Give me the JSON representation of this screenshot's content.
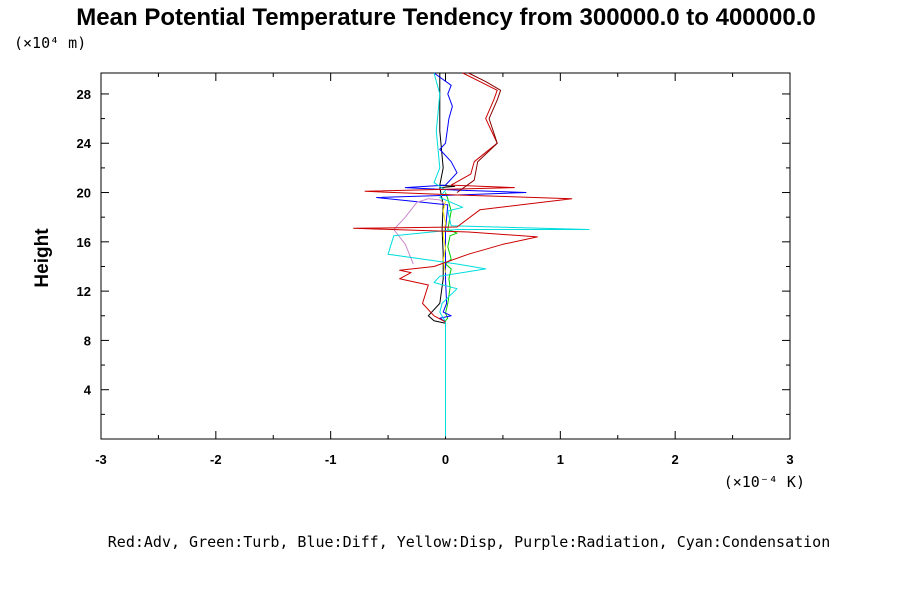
{
  "chart_data": {
    "type": "line",
    "title": "Mean Potential Temperature Tendency from 300000.0 to 400000.0",
    "ylabel": "Height",
    "y_unit": "(×10⁴ m)",
    "x_unit": "(×10⁻⁴ K)",
    "xlim": [
      -3,
      3
    ],
    "ylim": [
      0,
      29.7
    ],
    "x_ticks": [
      {
        "value": -3,
        "label": "-3"
      },
      {
        "value": -2,
        "label": "-2"
      },
      {
        "value": -1,
        "label": "-1"
      },
      {
        "value": 0,
        "label": "0"
      },
      {
        "value": 1,
        "label": "1"
      },
      {
        "value": 2,
        "label": "2"
      },
      {
        "value": 3,
        "label": "3"
      }
    ],
    "y_ticks": [
      {
        "value": 4,
        "label": "4"
      },
      {
        "value": 8,
        "label": "8"
      },
      {
        "value": 12,
        "label": "12"
      },
      {
        "value": 16,
        "label": "16"
      },
      {
        "value": 20,
        "label": "20"
      },
      {
        "value": 24,
        "label": "24"
      },
      {
        "value": 28,
        "label": "28"
      }
    ],
    "grid": false,
    "legend_text": "Red:Adv, Green:Turb, Blue:Diff, Yellow:Disp, Purple:Radiation, Cyan:Condensation",
    "series": [
      {
        "color": "#000000",
        "points": [
          [
            0,
            0.2
          ],
          [
            0,
            9.4
          ],
          [
            -0.1,
            9.6
          ],
          [
            -0.15,
            10
          ],
          [
            -0.05,
            11
          ],
          [
            -0.02,
            13
          ],
          [
            -0.02,
            15
          ],
          [
            -0.03,
            17
          ],
          [
            -0.02,
            19
          ],
          [
            -0.05,
            20.4
          ],
          [
            0.08,
            20.5
          ],
          [
            -0.05,
            20.6
          ],
          [
            -0.02,
            22
          ],
          [
            -0.05,
            25
          ],
          [
            -0.05,
            29.7
          ]
        ]
      },
      {
        "color": "#00cc00",
        "points": [
          [
            0,
            0.2
          ],
          [
            0,
            9.6
          ],
          [
            0.02,
            9.8
          ],
          [
            0,
            10.2
          ],
          [
            0.02,
            11
          ],
          [
            0.04,
            12.3
          ],
          [
            0.03,
            13
          ],
          [
            0.05,
            13.8
          ],
          [
            0,
            14.2
          ],
          [
            0.05,
            14.6
          ],
          [
            0.02,
            15.6
          ],
          [
            0.04,
            16.5
          ],
          [
            0.1,
            16.7
          ],
          [
            0.02,
            17
          ],
          [
            0.05,
            18.5
          ],
          [
            0.02,
            19.5
          ],
          [
            0,
            20
          ]
        ]
      },
      {
        "color": "#0000ff",
        "points": [
          [
            0,
            9.5
          ],
          [
            -0.05,
            9.8
          ],
          [
            0.05,
            10
          ],
          [
            -0.02,
            10.3
          ],
          [
            0.01,
            11
          ],
          [
            0,
            13
          ],
          [
            0,
            17
          ],
          [
            0.02,
            19
          ],
          [
            -0.6,
            19.6
          ],
          [
            0.1,
            19.8
          ],
          [
            0.7,
            20
          ],
          [
            0.1,
            20.2
          ],
          [
            -0.35,
            20.4
          ],
          [
            0,
            20.6
          ],
          [
            0.1,
            21.6
          ],
          [
            0.05,
            22.5
          ],
          [
            -0.05,
            23.5
          ],
          [
            0,
            24
          ],
          [
            0.03,
            26
          ],
          [
            0.06,
            27
          ],
          [
            0.02,
            28
          ],
          [
            0.05,
            28.7
          ],
          [
            -0.1,
            29.7
          ]
        ]
      },
      {
        "color": "#ffee00",
        "points": [
          [
            0,
            13.5
          ],
          [
            -0.02,
            14.5
          ],
          [
            0,
            15.5
          ],
          [
            -0.02,
            16.5
          ],
          [
            0,
            17.5
          ],
          [
            -0.02,
            18.5
          ],
          [
            0,
            19.3
          ]
        ]
      },
      {
        "color": "#cc88cc",
        "points": [
          [
            -0.28,
            14.2
          ],
          [
            -0.35,
            15.8
          ],
          [
            -0.45,
            17
          ],
          [
            -0.35,
            18
          ],
          [
            -0.25,
            19.2
          ],
          [
            -0.15,
            19.5
          ],
          [
            -0.05,
            19.4
          ],
          [
            0,
            19
          ]
        ]
      },
      {
        "color": "#00dddd",
        "points": [
          [
            0,
            0.2
          ],
          [
            0,
            9.5
          ],
          [
            -0.05,
            10.3
          ],
          [
            -0.03,
            11
          ],
          [
            0.1,
            12.2
          ],
          [
            -0.1,
            12.7
          ],
          [
            -0.05,
            13.2
          ],
          [
            0.35,
            13.8
          ],
          [
            0.1,
            14.2
          ],
          [
            -0.5,
            15
          ],
          [
            -0.45,
            16.5
          ],
          [
            0.1,
            17
          ],
          [
            1.25,
            17
          ],
          [
            0.05,
            17.3
          ],
          [
            0.02,
            18.5
          ],
          [
            0.15,
            18.8
          ],
          [
            0.05,
            19.2
          ],
          [
            -0.05,
            19.6
          ],
          [
            0,
            20.2
          ],
          [
            -0.1,
            20.8
          ],
          [
            -0.05,
            22
          ],
          [
            -0.08,
            25
          ],
          [
            -0.05,
            28
          ],
          [
            -0.1,
            29.7
          ]
        ]
      },
      {
        "color": "#cc0000",
        "points": [
          [
            0,
            9.5
          ],
          [
            -0.1,
            10
          ],
          [
            -0.2,
            11
          ],
          [
            -0.15,
            12.5
          ],
          [
            -0.4,
            13
          ],
          [
            -0.3,
            13.5
          ],
          [
            -0.4,
            13.7
          ],
          [
            -0.1,
            14
          ],
          [
            0.2,
            15
          ],
          [
            0.5,
            15.8
          ],
          [
            0.8,
            16.4
          ],
          [
            0.2,
            16.8
          ],
          [
            -0.8,
            17.1
          ],
          [
            0.1,
            17.2
          ],
          [
            0.3,
            18.6
          ],
          [
            1.1,
            19.5
          ],
          [
            0.1,
            19.8
          ],
          [
            -0.7,
            20.1
          ],
          [
            0.6,
            20.4
          ],
          [
            0.05,
            20.6
          ],
          [
            0.22,
            21.5
          ],
          [
            0.25,
            22.5
          ],
          [
            0.45,
            24
          ],
          [
            0.35,
            26
          ],
          [
            0.42,
            27.5
          ],
          [
            0.45,
            28.3
          ],
          [
            0.3,
            29
          ],
          [
            0.15,
            29.7
          ]
        ]
      },
      {
        "color": "#880000",
        "points": [
          [
            0.1,
            20
          ],
          [
            0.25,
            21
          ],
          [
            0.28,
            22.5
          ],
          [
            0.45,
            24
          ],
          [
            0.38,
            26
          ],
          [
            0.45,
            27.5
          ],
          [
            0.48,
            28.3
          ],
          [
            0.35,
            29
          ],
          [
            0.2,
            29.7
          ]
        ]
      }
    ]
  }
}
